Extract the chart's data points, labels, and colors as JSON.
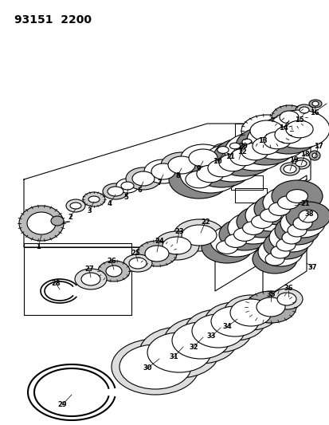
{
  "title": "93151  2200",
  "bg_color": "#ffffff",
  "lc": "#000000",
  "fig_width": 4.14,
  "fig_height": 5.33,
  "dpi": 100
}
